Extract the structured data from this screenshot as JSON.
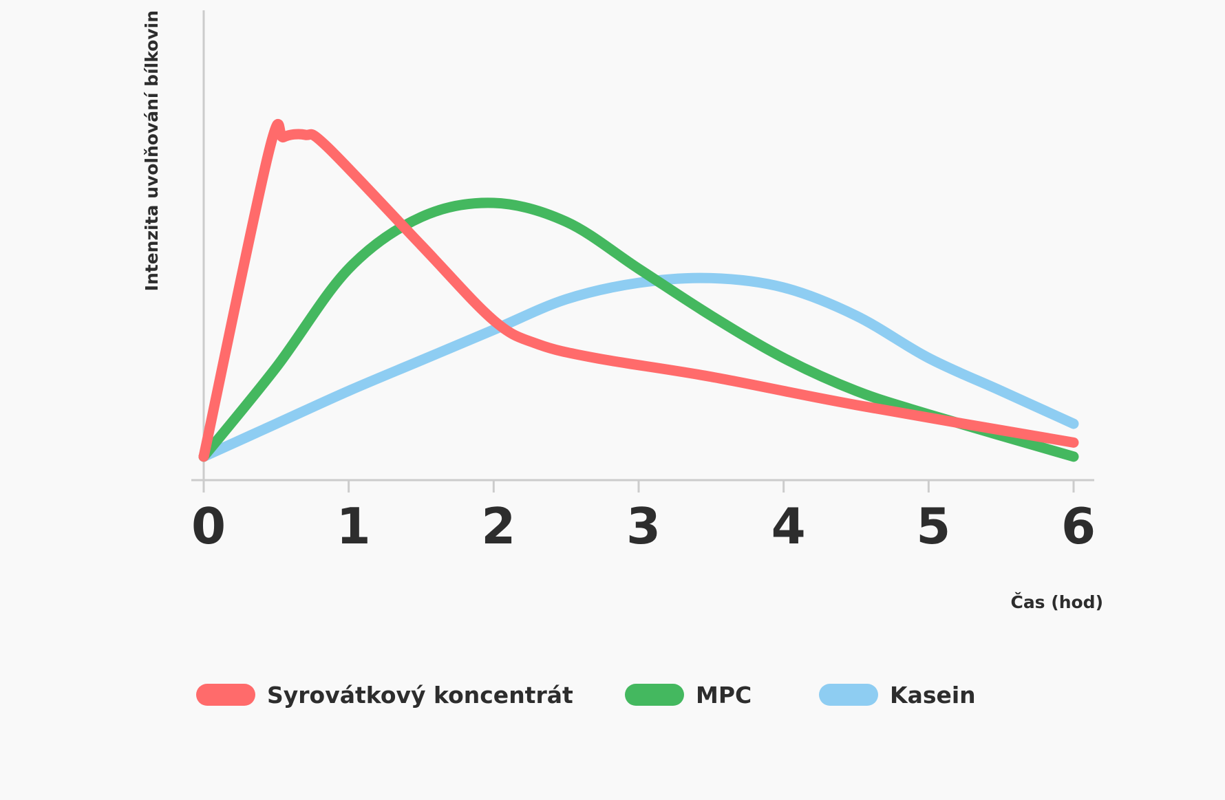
{
  "chart_data": {
    "type": "line",
    "title": "",
    "xlabel": "Čas (hod)",
    "ylabel": "Intenzita uvolňování bílkovin",
    "xlim": [
      0,
      6
    ],
    "ylim": [
      0,
      100
    ],
    "x_ticks": [
      "0",
      "1",
      "2",
      "3",
      "4",
      "5",
      "6"
    ],
    "y_tick_labels": false,
    "grid": false,
    "legend_position": "bottom",
    "series": [
      {
        "name": "Syrovátkový koncentrát",
        "color": "#ff6b6b",
        "x": [
          0,
          0.45,
          0.55,
          0.7,
          0.85,
          1.5,
          2.0,
          2.3,
          2.7,
          3.5,
          4.5,
          6.0
        ],
        "y": [
          5,
          70,
          73,
          73.5,
          71,
          50,
          34,
          29,
          26,
          22,
          16,
          8
        ]
      },
      {
        "name": "MPC",
        "color": "#44b85f",
        "x": [
          0,
          0.5,
          1.0,
          1.5,
          2.0,
          2.5,
          3.0,
          3.5,
          4.0,
          4.5,
          5.0,
          6.0
        ],
        "y": [
          5,
          24,
          45,
          56,
          59,
          55,
          45,
          35,
          26,
          19,
          14,
          5
        ]
      },
      {
        "name": "Kasein",
        "color": "#8ecdf2",
        "x": [
          0,
          0.5,
          1.0,
          1.5,
          2.0,
          2.5,
          3.0,
          3.5,
          4.0,
          4.5,
          5.0,
          5.5,
          6.0
        ],
        "y": [
          5,
          12,
          19,
          25.5,
          32,
          38.5,
          42,
          43,
          41,
          35,
          26,
          19,
          12
        ]
      }
    ]
  }
}
